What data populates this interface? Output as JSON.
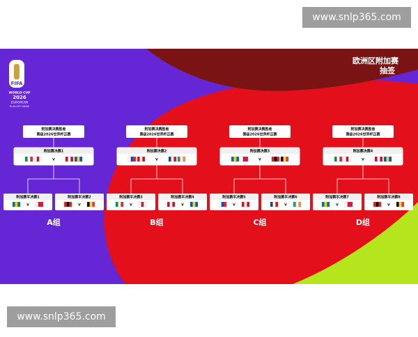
{
  "watermark_top": "www.snlp365.com",
  "watermark_bottom": "www.snlp365.com",
  "logo": {
    "year": "2026",
    "brand": "FIFA",
    "line1": "WORLD CUP",
    "line2": "2026",
    "line3": "EUROPEAN",
    "line4": "PLAY-OFF DRAW"
  },
  "title": {
    "line1": "欧洲区附加赛",
    "line2": "抽签"
  },
  "versus": "v",
  "groups": [
    {
      "winner": {
        "line1": "附加赛决赛胜者",
        "line2": "晋级2026世界杯正赛"
      },
      "final": "附加赛决赛1",
      "semis": [
        "附加赛半决赛1",
        "附加赛半决赛2"
      ],
      "label": "A组"
    },
    {
      "winner": {
        "line1": "附加赛决赛胜者",
        "line2": "晋级2026世界杯正赛"
      },
      "final": "附加赛决赛2",
      "semis": [
        "附加赛半决赛3",
        "附加赛半决赛4"
      ],
      "label": "B组"
    },
    {
      "winner": {
        "line1": "附加赛决赛胜者",
        "line2": "晋级2026世界杯正赛"
      },
      "final": "附加赛决赛3",
      "semis": [
        "附加赛半决赛5",
        "附加赛半决赛6"
      ],
      "label": "C组"
    },
    {
      "winner": {
        "line1": "附加赛决赛胜者",
        "line2": "晋级2026世界杯正赛"
      },
      "final": "附加赛决赛4",
      "semis": [
        "附加赛半决赛7",
        "附加赛半决赛8"
      ],
      "label": "D组"
    }
  ]
}
